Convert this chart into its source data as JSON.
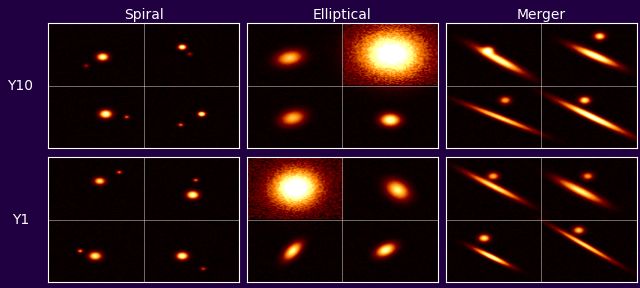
{
  "title_labels": [
    "Spiral",
    "Elliptical",
    "Merger"
  ],
  "row_labels": [
    "Y10",
    "Y1"
  ],
  "cmap": "afmhot",
  "bg_color": "#200040",
  "noise_level": 0.035,
  "figsize": [
    6.4,
    2.88
  ],
  "dpi": 100,
  "panel_rows": 2,
  "panel_cols": 3,
  "subpanel_size": 64,
  "seed": 7,
  "galaxy_types": [
    "spiral",
    "elliptical",
    "merger"
  ],
  "title_fontsize": 10,
  "label_fontsize": 10,
  "text_color": "white",
  "spine_color": "white",
  "spine_lw": 0.8
}
